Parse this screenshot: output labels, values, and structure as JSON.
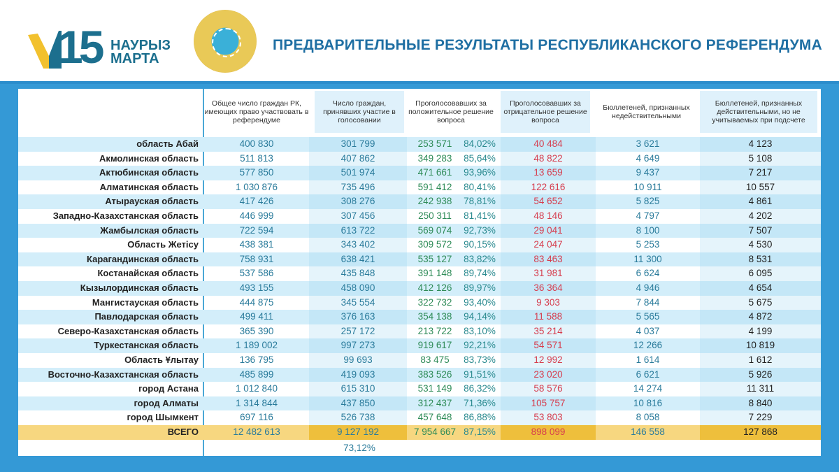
{
  "header": {
    "logo_number": "15",
    "logo_line1": "НАУРЫЗ",
    "logo_line2": "МАРТА",
    "seal": "Қазақстан Республикасының Орталық сайлау комиссиясы",
    "title": "ПРЕДВАРИТЕЛЬНЫЕ РЕЗУЛЬТАТЫ РЕСПУБЛИКАНСКОГО РЕФЕРЕНДУМА"
  },
  "colors": {
    "frame": "#3499d6",
    "positive": "#2e8b57",
    "negative": "#d63d4e",
    "neutral": "#2a7b9b",
    "total_row": "#f7d780"
  },
  "columns": [
    "Общее число граждан РК, имеющих право участвовать в референдуме",
    "Число граждан, принявших участие в голосовании",
    "Проголосовавших за положительное решение вопроса",
    "Проголосовавших за отрицательное решение вопроса",
    "Бюллетеней, признанных недействительными",
    "Бюллетеней, признанных действительными, но не учитываемых при подсчете"
  ],
  "rows": [
    [
      "область Абай",
      "400 830",
      "301 799",
      "253 571",
      "84,02%",
      "40 484",
      "3 621",
      "4 123"
    ],
    [
      "Акмолинская область",
      "511 813",
      "407 862",
      "349 283",
      "85,64%",
      "48 822",
      "4 649",
      "5 108"
    ],
    [
      "Актюбинская область",
      "577 850",
      "501 974",
      "471 661",
      "93,96%",
      "13 659",
      "9 437",
      "7 217"
    ],
    [
      "Алматинская область",
      "1 030 876",
      "735 496",
      "591 412",
      "80,41%",
      "122 616",
      "10 911",
      "10 557"
    ],
    [
      "Атырауская область",
      "417 426",
      "308 276",
      "242 938",
      "78,81%",
      "54 652",
      "5 825",
      "4 861"
    ],
    [
      "Западно-Казахстанская область",
      "446 999",
      "307 456",
      "250 311",
      "81,41%",
      "48 146",
      "4 797",
      "4 202"
    ],
    [
      "Жамбылская область",
      "722 594",
      "613 722",
      "569 074",
      "92,73%",
      "29 041",
      "8 100",
      "7 507"
    ],
    [
      "Область Жетісу",
      "438 381",
      "343 402",
      "309 572",
      "90,15%",
      "24 047",
      "5 253",
      "4 530"
    ],
    [
      "Карагандинская область",
      "758 931",
      "638 421",
      "535 127",
      "83,82%",
      "83 463",
      "11 300",
      "8 531"
    ],
    [
      "Костанайская область",
      "537 586",
      "435 848",
      "391 148",
      "89,74%",
      "31 981",
      "6 624",
      "6 095"
    ],
    [
      "Кызылординская область",
      "493 155",
      "458 090",
      "412 126",
      "89,97%",
      "36 364",
      "4 946",
      "4 654"
    ],
    [
      "Мангистауская область",
      "444 875",
      "345 554",
      "322 732",
      "93,40%",
      "9 303",
      "7 844",
      "5 675"
    ],
    [
      "Павлодарская область",
      "499 411",
      "376 163",
      "354 138",
      "94,14%",
      "11 588",
      "5 565",
      "4 872"
    ],
    [
      "Северо-Казахстанская область",
      "365 390",
      "257 172",
      "213 722",
      "83,10%",
      "35 214",
      "4 037",
      "4 199"
    ],
    [
      "Туркестанская область",
      "1 189 002",
      "997 273",
      "919 617",
      "92,21%",
      "54 571",
      "12 266",
      "10 819"
    ],
    [
      "Область Ұлытау",
      "136 795",
      "99 693",
      "83 475",
      "83,73%",
      "12 992",
      "1 614",
      "1 612"
    ],
    [
      "Восточно-Казахстанская область",
      "485 899",
      "419 093",
      "383 526",
      "91,51%",
      "23 020",
      "6 621",
      "5 926"
    ],
    [
      "город Астана",
      "1 012 840",
      "615 310",
      "531 149",
      "86,32%",
      "58 576",
      "14 274",
      "11 311"
    ],
    [
      "город Алматы",
      "1 314 844",
      "437 850",
      "312 437",
      "71,36%",
      "105 757",
      "10 816",
      "8 840"
    ],
    [
      "город Шымкент",
      "697 116",
      "526 738",
      "457 648",
      "86,88%",
      "53 803",
      "8 058",
      "7 229"
    ]
  ],
  "total": [
    "ВСЕГО",
    "12 482 613",
    "9 127 192",
    "7 954 667",
    "87,15%",
    "898 099",
    "146 558",
    "127 868"
  ],
  "turnout_percent": "73,12%"
}
